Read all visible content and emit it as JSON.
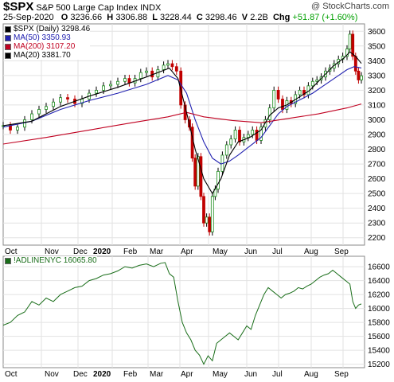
{
  "header": {
    "symbol": "$SPX",
    "name": "S&P 500 Large Cap Index",
    "exchange": "INDX",
    "watermark": "@ StockCharts.com",
    "date": "25-Sep-2020",
    "open_label": "O",
    "open": "3236.66",
    "high_label": "H",
    "high": "3306.88",
    "low_label": "L",
    "low": "3228.44",
    "close_label": "C",
    "close": "3298.46",
    "volume_label": "V",
    "volume": "2.2B",
    "chg_label": "Chg",
    "chg": "+51.87 (+1.60%)"
  },
  "legend": [
    {
      "text": "$SPX (Daily) 3298.46",
      "color": "#000000"
    },
    {
      "text": "MA(50) 3350.93",
      "color": "#2020b0"
    },
    {
      "text": "MA(200) 3107.20",
      "color": "#c00020"
    },
    {
      "text": "MA(20) 3381.70",
      "color": "#000000"
    }
  ],
  "lower_legend": {
    "text": "!ADLINENYC 16065.80",
    "color": "#1a6e1a"
  },
  "x_labels": [
    "Oct",
    "Nov",
    "Dec",
    "2020",
    "Feb",
    "Mar",
    "Apr",
    "May",
    "Jun",
    "Jul",
    "Aug",
    "Sep"
  ],
  "chart_data": [
    {
      "type": "candlestick",
      "title": "$SPX S&P 500 Large Cap Index INDX",
      "ylim": [
        2150,
        3650
      ],
      "yticks": [
        2200,
        2300,
        2400,
        2500,
        2600,
        2700,
        2800,
        2900,
        3000,
        3100,
        3200,
        3300,
        3400,
        3500,
        3600
      ],
      "x_index_range": [
        0,
        250
      ],
      "series": [
        {
          "name": "$SPX (Daily)",
          "color": "#000000",
          "points": [
            [
              0,
              2960
            ],
            [
              5,
              2930
            ],
            [
              10,
              2950
            ],
            [
              15,
              3000
            ],
            [
              20,
              3040
            ],
            [
              25,
              3070
            ],
            [
              30,
              3090
            ],
            [
              35,
              3120
            ],
            [
              40,
              3150
            ],
            [
              45,
              3140
            ],
            [
              50,
              3110
            ],
            [
              55,
              3140
            ],
            [
              60,
              3180
            ],
            [
              65,
              3200
            ],
            [
              70,
              3230
            ],
            [
              75,
              3240
            ],
            [
              80,
              3260
            ],
            [
              85,
              3280
            ],
            [
              88,
              3250
            ],
            [
              92,
              3280
            ],
            [
              96,
              3320
            ],
            [
              100,
              3330
            ],
            [
              104,
              3290
            ],
            [
              108,
              3340
            ],
            [
              112,
              3370
            ],
            [
              115,
              3380
            ],
            [
              118,
              3360
            ],
            [
              121,
              3330
            ],
            [
              124,
              3100
            ],
            [
              127,
              3000
            ],
            [
              130,
              2950
            ],
            [
              132,
              2740
            ],
            [
              134,
              2550
            ],
            [
              136,
              2750
            ],
            [
              138,
              2480
            ],
            [
              140,
              2300
            ],
            [
              142,
              2340
            ],
            [
              144,
              2240
            ],
            [
              146,
              2480
            ],
            [
              148,
              2530
            ],
            [
              150,
              2650
            ],
            [
              153,
              2760
            ],
            [
              156,
              2830
            ],
            [
              159,
              2870
            ],
            [
              162,
              2930
            ],
            [
              165,
              2850
            ],
            [
              168,
              2880
            ],
            [
              171,
              2900
            ],
            [
              174,
              2930
            ],
            [
              177,
              2860
            ],
            [
              180,
              2950
            ],
            [
              183,
              3000
            ],
            [
              186,
              3080
            ],
            [
              189,
              3200
            ],
            [
              192,
              3140
            ],
            [
              195,
              3070
            ],
            [
              198,
              3130
            ],
            [
              201,
              3110
            ],
            [
              204,
              3170
            ],
            [
              207,
              3200
            ],
            [
              210,
              3170
            ],
            [
              213,
              3230
            ],
            [
              216,
              3260
            ],
            [
              219,
              3270
            ],
            [
              222,
              3290
            ],
            [
              225,
              3330
            ],
            [
              228,
              3350
            ],
            [
              231,
              3380
            ],
            [
              234,
              3410
            ],
            [
              237,
              3430
            ],
            [
              240,
              3480
            ],
            [
              242,
              3580
            ],
            [
              244,
              3430
            ],
            [
              246,
              3330
            ],
            [
              248,
              3270
            ],
            [
              250,
              3298
            ]
          ]
        },
        {
          "name": "MA(50)",
          "color": "#2020b0",
          "points": [
            [
              0,
              2950
            ],
            [
              20,
              2990
            ],
            [
              40,
              3070
            ],
            [
              60,
              3130
            ],
            [
              80,
              3180
            ],
            [
              100,
              3240
            ],
            [
              115,
              3300
            ],
            [
              122,
              3270
            ],
            [
              128,
              3180
            ],
            [
              134,
              3000
            ],
            [
              140,
              2850
            ],
            [
              146,
              2740
            ],
            [
              152,
              2700
            ],
            [
              158,
              2720
            ],
            [
              164,
              2760
            ],
            [
              172,
              2820
            ],
            [
              180,
              2880
            ],
            [
              186,
              2960
            ],
            [
              192,
              3040
            ],
            [
              198,
              3090
            ],
            [
              204,
              3120
            ],
            [
              210,
              3150
            ],
            [
              216,
              3180
            ],
            [
              222,
              3220
            ],
            [
              228,
              3260
            ],
            [
              234,
              3300
            ],
            [
              240,
              3340
            ],
            [
              245,
              3360
            ],
            [
              250,
              3351
            ]
          ]
        },
        {
          "name": "MA(200)",
          "color": "#c00020",
          "points": [
            [
              0,
              2835
            ],
            [
              30,
              2880
            ],
            [
              60,
              2930
            ],
            [
              90,
              2980
            ],
            [
              115,
              3020
            ],
            [
              128,
              3050
            ],
            [
              140,
              3020
            ],
            [
              160,
              2995
            ],
            [
              180,
              2980
            ],
            [
              200,
              3010
            ],
            [
              220,
              3040
            ],
            [
              240,
              3080
            ],
            [
              250,
              3107
            ]
          ]
        },
        {
          "name": "MA(20)",
          "color": "#000000",
          "points": [
            [
              0,
              2960
            ],
            [
              20,
              2990
            ],
            [
              40,
              3090
            ],
            [
              60,
              3160
            ],
            [
              80,
              3220
            ],
            [
              100,
              3290
            ],
            [
              116,
              3350
            ],
            [
              122,
              3280
            ],
            [
              128,
              3050
            ],
            [
              134,
              2800
            ],
            [
              140,
              2600
            ],
            [
              146,
              2500
            ],
            [
              152,
              2600
            ],
            [
              158,
              2760
            ],
            [
              164,
              2850
            ],
            [
              172,
              2880
            ],
            [
              180,
              2930
            ],
            [
              186,
              3030
            ],
            [
              192,
              3080
            ],
            [
              198,
              3100
            ],
            [
              206,
              3150
            ],
            [
              214,
              3200
            ],
            [
              222,
              3280
            ],
            [
              230,
              3360
            ],
            [
              238,
              3420
            ],
            [
              242,
              3460
            ],
            [
              246,
              3430
            ],
            [
              250,
              3382
            ]
          ]
        }
      ]
    },
    {
      "type": "line",
      "title": "!ADLINENYC 16065.80",
      "ylim": [
        15150,
        16750
      ],
      "yticks": [
        15200,
        15400,
        15600,
        15800,
        16000,
        16200,
        16400,
        16600
      ],
      "series": [
        {
          "name": "!ADLINENYC",
          "color": "#1a6e1a",
          "points": [
            [
              0,
              15760
            ],
            [
              5,
              15800
            ],
            [
              10,
              15900
            ],
            [
              15,
              15950
            ],
            [
              20,
              16100
            ],
            [
              25,
              16050
            ],
            [
              30,
              16150
            ],
            [
              35,
              16100
            ],
            [
              40,
              16200
            ],
            [
              45,
              16250
            ],
            [
              50,
              16300
            ],
            [
              55,
              16320
            ],
            [
              60,
              16400
            ],
            [
              65,
              16430
            ],
            [
              70,
              16480
            ],
            [
              75,
              16500
            ],
            [
              80,
              16540
            ],
            [
              85,
              16600
            ],
            [
              90,
              16580
            ],
            [
              95,
              16620
            ],
            [
              100,
              16640
            ],
            [
              105,
              16600
            ],
            [
              110,
              16650
            ],
            [
              113,
              16660
            ],
            [
              116,
              16500
            ],
            [
              119,
              16450
            ],
            [
              122,
              16100
            ],
            [
              125,
              15800
            ],
            [
              128,
              15650
            ],
            [
              131,
              15550
            ],
            [
              134,
              15400
            ],
            [
              137,
              15330
            ],
            [
              140,
              15200
            ],
            [
              143,
              15320
            ],
            [
              146,
              15250
            ],
            [
              149,
              15500
            ],
            [
              152,
              15550
            ],
            [
              155,
              15600
            ],
            [
              158,
              15650
            ],
            [
              161,
              15600
            ],
            [
              164,
              15550
            ],
            [
              167,
              15650
            ],
            [
              170,
              15750
            ],
            [
              173,
              15700
            ],
            [
              176,
              15900
            ],
            [
              179,
              16050
            ],
            [
              182,
              16200
            ],
            [
              185,
              16300
            ],
            [
              188,
              16250
            ],
            [
              191,
              16200
            ],
            [
              194,
              16150
            ],
            [
              197,
              16200
            ],
            [
              200,
              16220
            ],
            [
              203,
              16250
            ],
            [
              206,
              16300
            ],
            [
              209,
              16280
            ],
            [
              212,
              16320
            ],
            [
              215,
              16350
            ],
            [
              218,
              16400
            ],
            [
              221,
              16450
            ],
            [
              224,
              16480
            ],
            [
              227,
              16500
            ],
            [
              230,
              16550
            ],
            [
              233,
              16500
            ],
            [
              236,
              16450
            ],
            [
              239,
              16400
            ],
            [
              242,
              16350
            ],
            [
              244,
              16100
            ],
            [
              246,
              16000
            ],
            [
              248,
              16050
            ],
            [
              250,
              16066
            ]
          ]
        }
      ]
    }
  ]
}
